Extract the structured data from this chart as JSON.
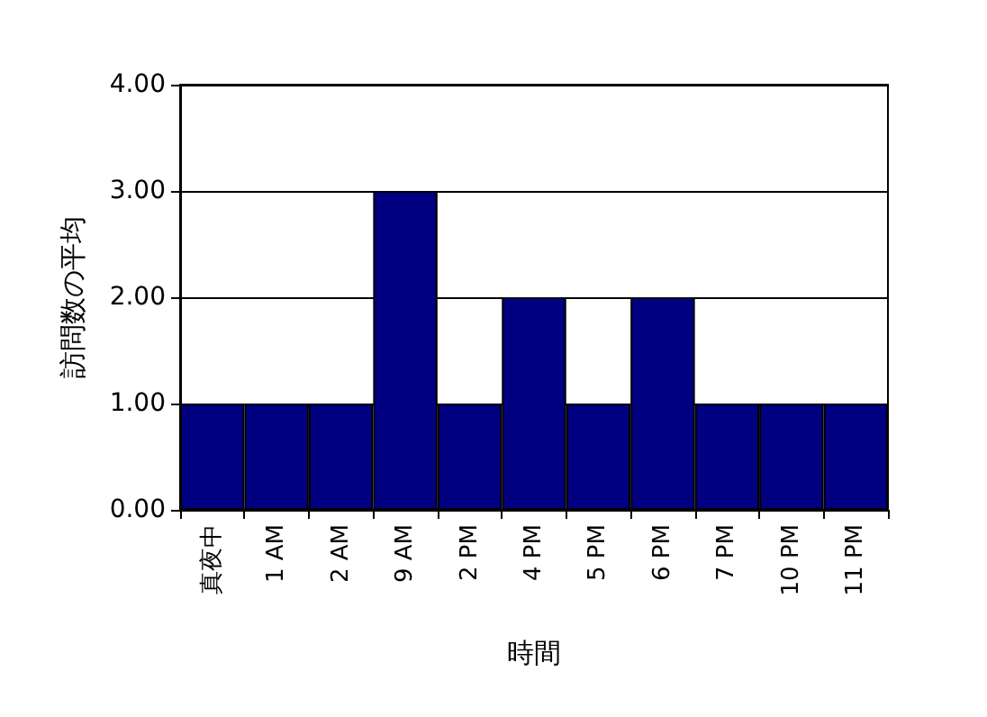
{
  "chart_data": {
    "type": "bar",
    "xlabel": "時間",
    "ylabel": "訪問数の平均",
    "categories": [
      "真夜中",
      "1 AM",
      "2 AM",
      "9 AM",
      "2 PM",
      "4 PM",
      "5 PM",
      "6 PM",
      "7 PM",
      "10 PM",
      "11 PM"
    ],
    "values": [
      1,
      1,
      1,
      3,
      1,
      2,
      1,
      2,
      1,
      1,
      1
    ],
    "color": "#000080",
    "ylim": [
      0,
      4
    ],
    "yticks": [
      {
        "value": 0,
        "label": "0.00"
      },
      {
        "value": 1,
        "label": "1.00"
      },
      {
        "value": 2,
        "label": "2.00"
      },
      {
        "value": 3,
        "label": "3.00"
      },
      {
        "value": 4,
        "label": "4.00"
      }
    ],
    "grid": "y"
  }
}
